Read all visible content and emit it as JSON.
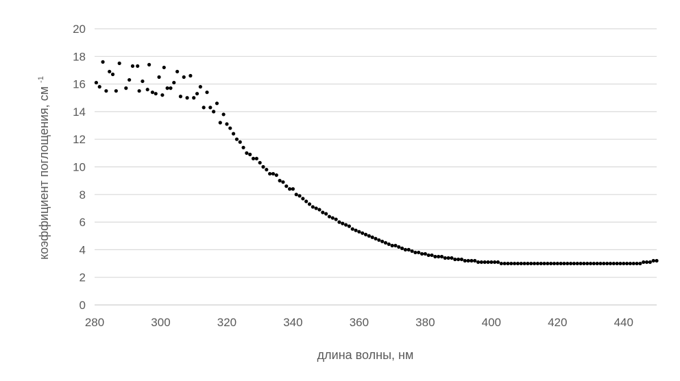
{
  "chart_data": {
    "type": "scatter",
    "title": "",
    "xlabel": "длина волны, нм",
    "ylabel": {
      "main": "коэффициент поглощения, см",
      "superscript": "-1"
    },
    "xlim": [
      280,
      450
    ],
    "ylim": [
      0,
      20
    ],
    "xticks": [
      280,
      300,
      320,
      340,
      360,
      380,
      400,
      420,
      440
    ],
    "yticks": [
      0,
      2,
      4,
      6,
      8,
      10,
      12,
      14,
      16,
      18,
      20
    ],
    "grid": {
      "horizontal": true,
      "vertical": false
    },
    "marker_color": "#000000",
    "grid_color": "#d9d9d9",
    "text_color": "#595959",
    "series": [
      {
        "points": [
          [
            280.5,
            16.1
          ],
          [
            281.5,
            15.8
          ],
          [
            282.5,
            17.6
          ],
          [
            283.5,
            15.5
          ],
          [
            284.5,
            16.9
          ],
          [
            285.5,
            16.7
          ],
          [
            286.5,
            15.5
          ],
          [
            287.5,
            17.5
          ],
          [
            289.5,
            15.7
          ],
          [
            290.5,
            16.3
          ],
          [
            291.5,
            17.3
          ],
          [
            293.0,
            17.3
          ],
          [
            293.5,
            15.5
          ],
          [
            294.5,
            16.2
          ],
          [
            296.0,
            15.6
          ],
          [
            296.5,
            17.4
          ],
          [
            297.5,
            15.4
          ],
          [
            298.5,
            15.3
          ],
          [
            299.5,
            16.5
          ],
          [
            300.5,
            15.2
          ],
          [
            301.0,
            17.2
          ],
          [
            302.0,
            15.7
          ],
          [
            303.0,
            15.7
          ],
          [
            304.0,
            16.1
          ],
          [
            305.0,
            16.9
          ],
          [
            306.0,
            15.1
          ],
          [
            307.0,
            16.5
          ],
          [
            308.0,
            15.0
          ],
          [
            309.0,
            16.6
          ],
          [
            310.0,
            15.0
          ],
          [
            311.0,
            15.3
          ],
          [
            312.0,
            15.8
          ],
          [
            313.0,
            14.3
          ],
          [
            314.0,
            15.4
          ],
          [
            315.0,
            14.3
          ],
          [
            316.0,
            14.0
          ],
          [
            317.0,
            14.6
          ],
          [
            318.0,
            13.2
          ],
          [
            319.0,
            13.8
          ],
          [
            320.0,
            13.1
          ],
          [
            321.0,
            12.8
          ],
          [
            322.0,
            12.4
          ],
          [
            323.0,
            12.0
          ],
          [
            324.0,
            11.8
          ],
          [
            325.0,
            11.4
          ],
          [
            326.0,
            11.0
          ],
          [
            327.0,
            10.9
          ],
          [
            328.0,
            10.6
          ],
          [
            329.0,
            10.6
          ],
          [
            330.0,
            10.3
          ],
          [
            331.0,
            10.0
          ],
          [
            332.0,
            9.8
          ],
          [
            333.0,
            9.5
          ],
          [
            334.0,
            9.5
          ],
          [
            335.0,
            9.4
          ],
          [
            336.0,
            9.0
          ],
          [
            337.0,
            8.9
          ],
          [
            338.0,
            8.6
          ],
          [
            339.0,
            8.4
          ],
          [
            340.0,
            8.4
          ],
          [
            341.0,
            8.0
          ],
          [
            342.0,
            7.9
          ],
          [
            343.0,
            7.7
          ],
          [
            344.0,
            7.5
          ],
          [
            345.0,
            7.3
          ],
          [
            346.0,
            7.1
          ],
          [
            347.0,
            7.0
          ],
          [
            348.0,
            6.9
          ],
          [
            349.0,
            6.7
          ],
          [
            350.0,
            6.6
          ],
          [
            351.0,
            6.4
          ],
          [
            352.0,
            6.3
          ],
          [
            353.0,
            6.2
          ],
          [
            354.0,
            6.0
          ],
          [
            355.0,
            5.9
          ],
          [
            356.0,
            5.8
          ],
          [
            357.0,
            5.7
          ],
          [
            358.0,
            5.5
          ],
          [
            359.0,
            5.4
          ],
          [
            360.0,
            5.3
          ],
          [
            361.0,
            5.2
          ],
          [
            362.0,
            5.1
          ],
          [
            363.0,
            5.0
          ],
          [
            364.0,
            4.9
          ],
          [
            365.0,
            4.8
          ],
          [
            366.0,
            4.7
          ],
          [
            367.0,
            4.6
          ],
          [
            368.0,
            4.5
          ],
          [
            369.0,
            4.4
          ],
          [
            370.0,
            4.3
          ],
          [
            371.0,
            4.3
          ],
          [
            372.0,
            4.2
          ],
          [
            373.0,
            4.1
          ],
          [
            374.0,
            4.0
          ],
          [
            375.0,
            4.0
          ],
          [
            376.0,
            3.9
          ],
          [
            377.0,
            3.8
          ],
          [
            378.0,
            3.8
          ],
          [
            379.0,
            3.7
          ],
          [
            380.0,
            3.7
          ],
          [
            381.0,
            3.6
          ],
          [
            382.0,
            3.6
          ],
          [
            383.0,
            3.5
          ],
          [
            384.0,
            3.5
          ],
          [
            385.0,
            3.5
          ],
          [
            386.0,
            3.4
          ],
          [
            387.0,
            3.4
          ],
          [
            388.0,
            3.4
          ],
          [
            389.0,
            3.3
          ],
          [
            390.0,
            3.3
          ],
          [
            391.0,
            3.3
          ],
          [
            392.0,
            3.2
          ],
          [
            393.0,
            3.2
          ],
          [
            394.0,
            3.2
          ],
          [
            395.0,
            3.2
          ],
          [
            396.0,
            3.1
          ],
          [
            397.0,
            3.1
          ],
          [
            398.0,
            3.1
          ],
          [
            399.0,
            3.1
          ],
          [
            400.0,
            3.1
          ],
          [
            401.0,
            3.1
          ],
          [
            402.0,
            3.1
          ],
          [
            403.0,
            3.0
          ],
          [
            404.0,
            3.0
          ],
          [
            405.0,
            3.0
          ],
          [
            406.0,
            3.0
          ],
          [
            407.0,
            3.0
          ],
          [
            408.0,
            3.0
          ],
          [
            409.0,
            3.0
          ],
          [
            410.0,
            3.0
          ],
          [
            411.0,
            3.0
          ],
          [
            412.0,
            3.0
          ],
          [
            413.0,
            3.0
          ],
          [
            414.0,
            3.0
          ],
          [
            415.0,
            3.0
          ],
          [
            416.0,
            3.0
          ],
          [
            417.0,
            3.0
          ],
          [
            418.0,
            3.0
          ],
          [
            419.0,
            3.0
          ],
          [
            420.0,
            3.0
          ],
          [
            421.0,
            3.0
          ],
          [
            422.0,
            3.0
          ],
          [
            423.0,
            3.0
          ],
          [
            424.0,
            3.0
          ],
          [
            425.0,
            3.0
          ],
          [
            426.0,
            3.0
          ],
          [
            427.0,
            3.0
          ],
          [
            428.0,
            3.0
          ],
          [
            429.0,
            3.0
          ],
          [
            430.0,
            3.0
          ],
          [
            431.0,
            3.0
          ],
          [
            432.0,
            3.0
          ],
          [
            433.0,
            3.0
          ],
          [
            434.0,
            3.0
          ],
          [
            435.0,
            3.0
          ],
          [
            436.0,
            3.0
          ],
          [
            437.0,
            3.0
          ],
          [
            438.0,
            3.0
          ],
          [
            439.0,
            3.0
          ],
          [
            440.0,
            3.0
          ],
          [
            441.0,
            3.0
          ],
          [
            442.0,
            3.0
          ],
          [
            443.0,
            3.0
          ],
          [
            444.0,
            3.0
          ],
          [
            445.0,
            3.0
          ],
          [
            446.0,
            3.1
          ],
          [
            447.0,
            3.1
          ],
          [
            448.0,
            3.1
          ],
          [
            449.0,
            3.2
          ],
          [
            450.0,
            3.2
          ]
        ]
      }
    ]
  }
}
